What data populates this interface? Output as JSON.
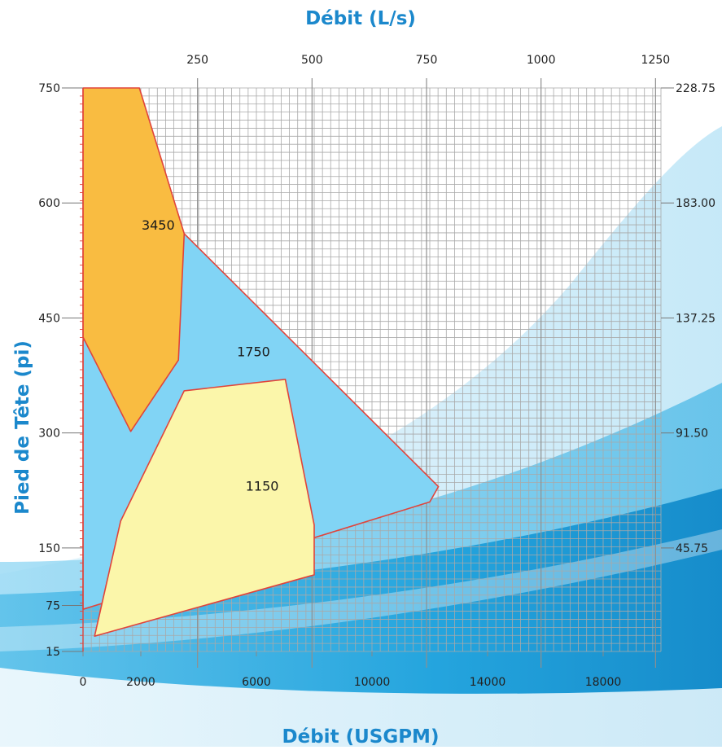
{
  "chart_data": {
    "type": "area",
    "x_top_label": "Débit (L/s)",
    "x_bottom_label": "Débit (USGPM)",
    "y_left_label": "Pied de Tête (pi)",
    "x_top_ticks": [
      "250",
      "500",
      "750",
      "1000",
      "1250"
    ],
    "x_top_tick_values": [
      250,
      500,
      750,
      1000,
      1250
    ],
    "x_bottom_ticks": [
      "0",
      "2000",
      "6000",
      "10000",
      "14000",
      "18000"
    ],
    "x_bottom_tick_values": [
      0,
      2000,
      6000,
      10000,
      14000,
      18000
    ],
    "y_left_ticks": [
      "750",
      "600",
      "450",
      "300",
      "150",
      "75",
      "15"
    ],
    "y_left_tick_values": [
      750,
      600,
      450,
      300,
      150,
      75,
      15
    ],
    "y_right_ticks": [
      "228.75",
      "183.00",
      "137.25",
      "91.50",
      "45.75"
    ],
    "y_right_tick_values": [
      750,
      600,
      450,
      300,
      150
    ],
    "xlim": [
      0,
      20000
    ],
    "ylim": [
      15,
      750
    ],
    "grid": true,
    "series": [
      {
        "name": "1750",
        "color": "#81d4f5",
        "points": [
          [
            0,
            420
          ],
          [
            3500,
            560
          ],
          [
            12300,
            230
          ],
          [
            12000,
            210
          ],
          [
            0,
            70
          ]
        ]
      },
      {
        "name": "3450",
        "color": "#f9bc41",
        "points": [
          [
            0,
            750
          ],
          [
            1950,
            750
          ],
          [
            3500,
            560
          ],
          [
            3300,
            395
          ],
          [
            1650,
            302
          ],
          [
            0,
            425
          ]
        ]
      },
      {
        "name": "1150",
        "color": "#fbf6aa",
        "points": [
          [
            3500,
            355
          ],
          [
            7000,
            370
          ],
          [
            8000,
            180
          ],
          [
            8000,
            115
          ],
          [
            400,
            35
          ],
          [
            1300,
            185
          ]
        ]
      }
    ],
    "region_labels": [
      {
        "text": "3450",
        "x": 2600,
        "y": 565
      },
      {
        "text": "1750",
        "x": 5900,
        "y": 400
      },
      {
        "text": "1150",
        "x": 6200,
        "y": 225
      }
    ]
  }
}
